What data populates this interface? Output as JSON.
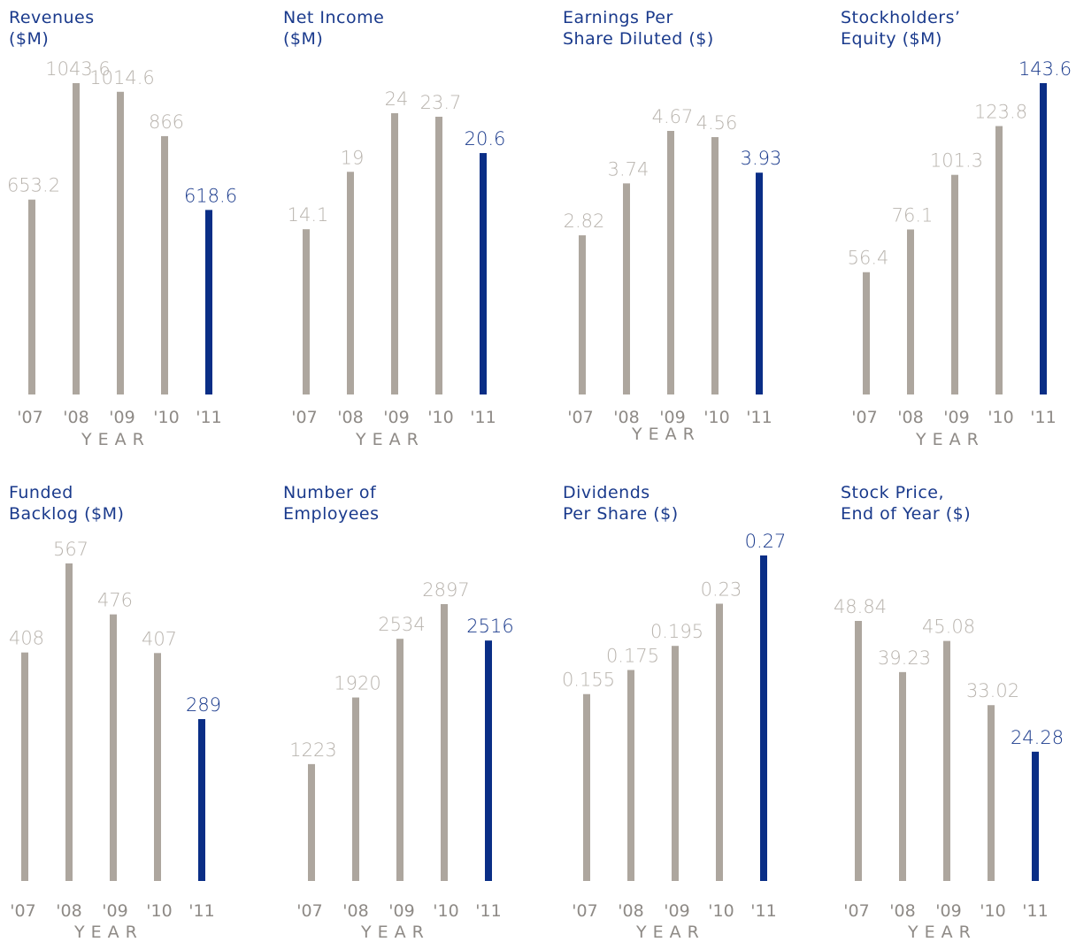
{
  "colors": {
    "bar_past": "#ada69e",
    "bar_current": "#0a2e86",
    "label_past": "#b9b4ae",
    "label_current": "#1a3a8c",
    "title": "#1a3a8c",
    "axis_text": "#8e8a86"
  },
  "chart_data": [
    {
      "type": "bar",
      "title": [
        "Revenues",
        "($M)"
      ],
      "xlabel": "YEAR",
      "categories": [
        "'07",
        "'08",
        "'09",
        "'10",
        "'11"
      ],
      "values": [
        653.2,
        1043.6,
        1014.6,
        866,
        618.6
      ],
      "value_labels": [
        "653.2",
        "1043.6",
        "1014.6",
        "866",
        "618.6"
      ],
      "ylim": [
        0,
        1043.6
      ],
      "highlight_index": 4
    },
    {
      "type": "bar",
      "title": [
        "Net Income",
        "($M)"
      ],
      "xlabel": "YEAR",
      "categories": [
        "'07",
        "'08",
        "'09",
        "'10",
        "'11"
      ],
      "values": [
        14.1,
        19,
        24,
        23.7,
        20.6
      ],
      "value_labels": [
        "14.1",
        "19",
        "24",
        "23.7",
        "20.6"
      ],
      "ylim": [
        0,
        24
      ],
      "highlight_index": 4
    },
    {
      "type": "bar",
      "title": [
        "Earnings Per",
        "Share Diluted ($)"
      ],
      "xlabel": "YEAR",
      "categories": [
        "'07",
        "'08",
        "'09",
        "'10",
        "'11"
      ],
      "values": [
        2.82,
        3.74,
        4.67,
        4.56,
        3.93
      ],
      "value_labels": [
        "2.82",
        "3.74",
        "4.67",
        "4.56",
        "3.93"
      ],
      "ylim": [
        0,
        4.67
      ],
      "highlight_index": 4
    },
    {
      "type": "bar",
      "title": [
        "Stockholders’",
        "Equity ($M)"
      ],
      "xlabel": "YEAR",
      "categories": [
        "'07",
        "'08",
        "'09",
        "'10",
        "'11"
      ],
      "values": [
        56.4,
        76.1,
        101.3,
        123.8,
        143.6
      ],
      "value_labels": [
        "56.4",
        "76.1",
        "101.3",
        "123.8",
        "143.6"
      ],
      "ylim": [
        0,
        143.6
      ],
      "highlight_index": 4
    },
    {
      "type": "bar",
      "title": [
        "Funded",
        "Backlog ($M)"
      ],
      "xlabel": "YEAR",
      "categories": [
        "'07",
        "'08",
        "'09",
        "'10",
        "'11"
      ],
      "values": [
        408,
        567,
        476,
        407,
        289
      ],
      "value_labels": [
        "408",
        "567",
        "476",
        "407",
        "289"
      ],
      "ylim": [
        0,
        567
      ],
      "highlight_index": 4
    },
    {
      "type": "bar",
      "title": [
        "Number of",
        "Employees"
      ],
      "xlabel": "YEAR",
      "categories": [
        "'07",
        "'08",
        "'09",
        "'10",
        "'11"
      ],
      "values": [
        1223,
        1920,
        2534,
        2897,
        2516
      ],
      "value_labels": [
        "1223",
        "1920",
        "2534",
        "2897",
        "2516"
      ],
      "ylim": [
        0,
        2897
      ],
      "highlight_index": 4
    },
    {
      "type": "bar",
      "title": [
        "Dividends",
        "Per Share ($)"
      ],
      "xlabel": "YEAR",
      "categories": [
        "'07",
        "'08",
        "'09",
        "'10",
        "'11"
      ],
      "values": [
        0.155,
        0.175,
        0.195,
        0.23,
        0.27
      ],
      "value_labels": [
        "0.155",
        "0.175",
        "0.195",
        "0.23",
        "0.27"
      ],
      "ylim": [
        0,
        0.27
      ],
      "highlight_index": 4
    },
    {
      "type": "bar",
      "title": [
        "Stock Price,",
        "End of Year ($)"
      ],
      "xlabel": "YEAR",
      "categories": [
        "'07",
        "'08",
        "'09",
        "'10",
        "'11"
      ],
      "values": [
        48.84,
        39.23,
        45.08,
        33.02,
        24.28
      ],
      "value_labels": [
        "48.84",
        "39.23",
        "45.08",
        "33.02",
        "24.28"
      ],
      "ylim": [
        0,
        48.84
      ],
      "highlight_index": 4
    }
  ]
}
